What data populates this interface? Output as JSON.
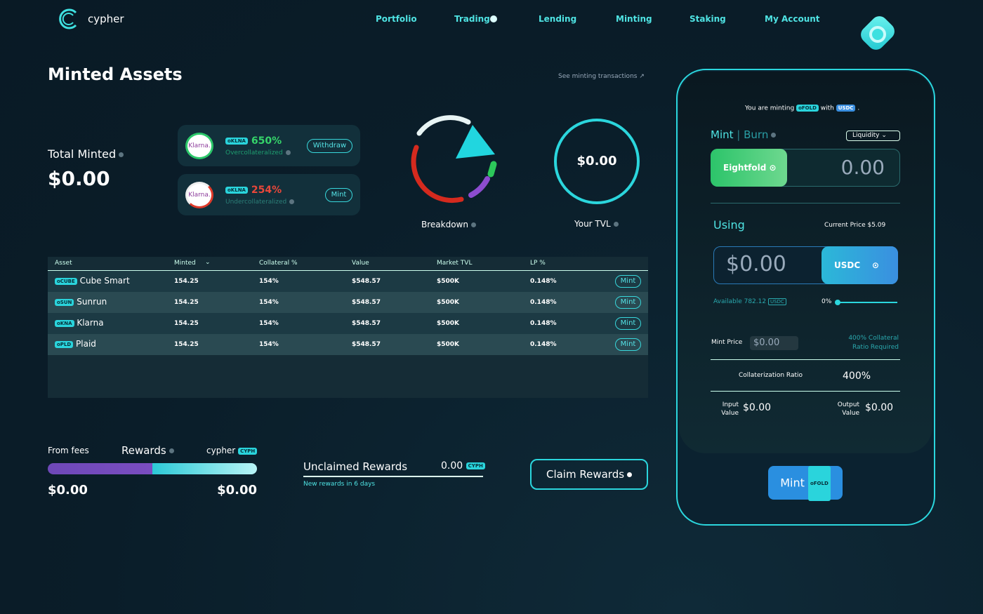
{
  "nav": {
    "brand": "cypher",
    "links": [
      "Portfolio",
      "Trading",
      "Lending",
      "Minting",
      "Staking",
      "My Account"
    ]
  },
  "minted": {
    "title": "Minted Assets",
    "link": "See minting transactions",
    "total_label": "Total Minted",
    "total_value": "$0.00",
    "cards": [
      {
        "logo": "Klarna.",
        "badge": "oKLNA",
        "pct": "650%",
        "status": "Overcollateralized",
        "button": "Withdraw"
      },
      {
        "logo": "Klarna.",
        "badge": "oKLNA",
        "pct": "254%",
        "status": "Undercollateralized",
        "button": "Mint"
      }
    ],
    "breakdown": "Breakdown",
    "tvl_value": "$0.00",
    "tvl_label": "Your TVL"
  },
  "table": {
    "columns": [
      "Asset",
      "Minted",
      "Collateral %",
      "Value",
      "Market TVL",
      "LP %"
    ],
    "rows": [
      {
        "badge": "oCUBE",
        "name": "Cube Smart",
        "cells": [
          "154.25",
          "154%",
          "$548.57",
          "$500K",
          "0.148%"
        ],
        "button": "Mint"
      },
      {
        "badge": "oSUN",
        "name": "Sunrun",
        "cells": [
          "154.25",
          "154%",
          "$548.57",
          "$500K",
          "0.148%"
        ],
        "button": "Mint"
      },
      {
        "badge": "oKNA",
        "name": "Klarna",
        "cells": [
          "154.25",
          "154%",
          "$548.57",
          "$500K",
          "0.148%"
        ],
        "button": "Mint"
      },
      {
        "badge": "oPLD",
        "name": "Plaid",
        "cells": [
          "154.25",
          "154%",
          "$548.57",
          "$500K",
          "0.148%"
        ],
        "button": "Mint"
      }
    ]
  },
  "rewards": {
    "fees_label": "From fees",
    "title": "Rewards",
    "brand": "cypher",
    "token": "CYPH",
    "left_value": "$0.00",
    "right_value": "$0.00",
    "unclaimed_label": "Unclaimed Rewards",
    "unclaimed_value": "0.00",
    "unclaimed_token": "CYPH",
    "note": "New rewards in 6 days",
    "claim": "Claim Rewards"
  },
  "panel": {
    "minting_prefix": "You are minting",
    "minting_token": "oFOLD",
    "minting_with": "with",
    "minting_pay": "USDC",
    "minting_end": ".",
    "mint_tab": "Mint",
    "burn_tab": "Burn",
    "dropdown": "Liquidity",
    "asset": "Eightfold",
    "amount": "0.00",
    "using": "Using",
    "current_price": "Current Price $5.09",
    "using_amount": "$0.00",
    "using_token": "USDC",
    "available": "Available 782.12",
    "available_token": "USDC",
    "slider_pct": "0%",
    "mint_price_label": "Mint Price",
    "mint_price": "$0.00",
    "ratio_note": "400% Collateral Ratio Required",
    "ratio_label": "Collaterization Ratio",
    "ratio_value": "400%",
    "input_label": "Input Value",
    "input_value": "$0.00",
    "output_label": "Output Value",
    "output_value": "$0.00",
    "button": "Mint",
    "button_token": "oFOLD"
  }
}
